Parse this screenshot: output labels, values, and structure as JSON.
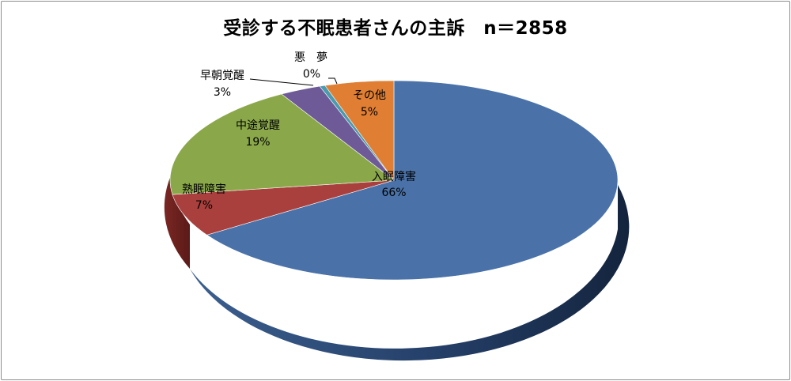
{
  "chart_data": {
    "type": "pie",
    "title": "受診する不眠患者さんの主訴　n＝2858",
    "slices": [
      {
        "label": "入眠障害",
        "value": 66,
        "value_label": "66%",
        "color": "#4a72a8"
      },
      {
        "label": "熟眠障害",
        "value": 7,
        "value_label": "7%",
        "color": "#a9403d"
      },
      {
        "label": "中途覚醒",
        "value": 19,
        "value_label": "19%",
        "color": "#8aa84a"
      },
      {
        "label": "早朝覚醒",
        "value": 3,
        "value_label": "3%",
        "color": "#6d5a96"
      },
      {
        "label": "悪　夢",
        "value": 0,
        "value_label": "0%",
        "color": "#4a9bb0"
      },
      {
        "label": "その他",
        "value": 5,
        "value_label": "5%",
        "color": "#e07f34"
      }
    ]
  }
}
